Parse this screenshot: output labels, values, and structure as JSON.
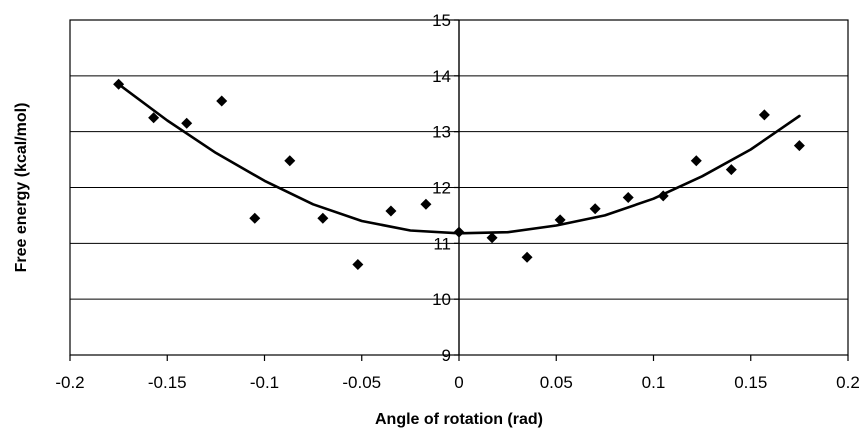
{
  "chart_data": {
    "type": "scatter",
    "title": "",
    "xlabel": "Angle of rotation (rad)",
    "ylabel": "Free energy (kcal/mol)",
    "xlim": [
      -0.2,
      0.2
    ],
    "ylim": [
      9,
      15
    ],
    "x_ticks": [
      -0.2,
      -0.15,
      -0.1,
      -0.05,
      0,
      0.05,
      0.1,
      0.15,
      0.2
    ],
    "x_tick_labels": [
      "-0.2",
      "-0.15",
      "-0.1",
      "-0.05",
      "0",
      "0.05",
      "0.1",
      "0.15",
      "0.2"
    ],
    "y_ticks": [
      9,
      10,
      11,
      12,
      13,
      14,
      15
    ],
    "y_tick_labels": [
      "9",
      "10",
      "11",
      "12",
      "13",
      "14",
      "15"
    ],
    "grid": "horizontal",
    "y_axis_position": "x=0",
    "series": [
      {
        "type": "scatter",
        "marker": "diamond",
        "color": "#000000",
        "x": [
          -0.175,
          -0.157,
          -0.14,
          -0.122,
          -0.105,
          -0.087,
          -0.07,
          -0.052,
          -0.035,
          -0.017,
          0,
          0.017,
          0.035,
          0.052,
          0.07,
          0.087,
          0.105,
          0.122,
          0.14,
          0.157,
          0.175
        ],
        "y": [
          13.85,
          13.25,
          13.15,
          13.55,
          11.45,
          12.48,
          11.45,
          10.62,
          11.58,
          11.7,
          11.2,
          11.1,
          10.75,
          11.42,
          11.62,
          11.82,
          11.85,
          12.48,
          12.32,
          13.3,
          12.75
        ]
      },
      {
        "type": "line",
        "style": "trendline",
        "color": "#000000",
        "x": [
          -0.175,
          -0.15,
          -0.125,
          -0.1,
          -0.075,
          -0.05,
          -0.025,
          0,
          0.025,
          0.05,
          0.075,
          0.1,
          0.125,
          0.15,
          0.175
        ],
        "y": [
          13.85,
          13.2,
          12.62,
          12.12,
          11.7,
          11.4,
          11.23,
          11.18,
          11.2,
          11.32,
          11.5,
          11.8,
          12.2,
          12.68,
          13.28
        ]
      }
    ]
  }
}
